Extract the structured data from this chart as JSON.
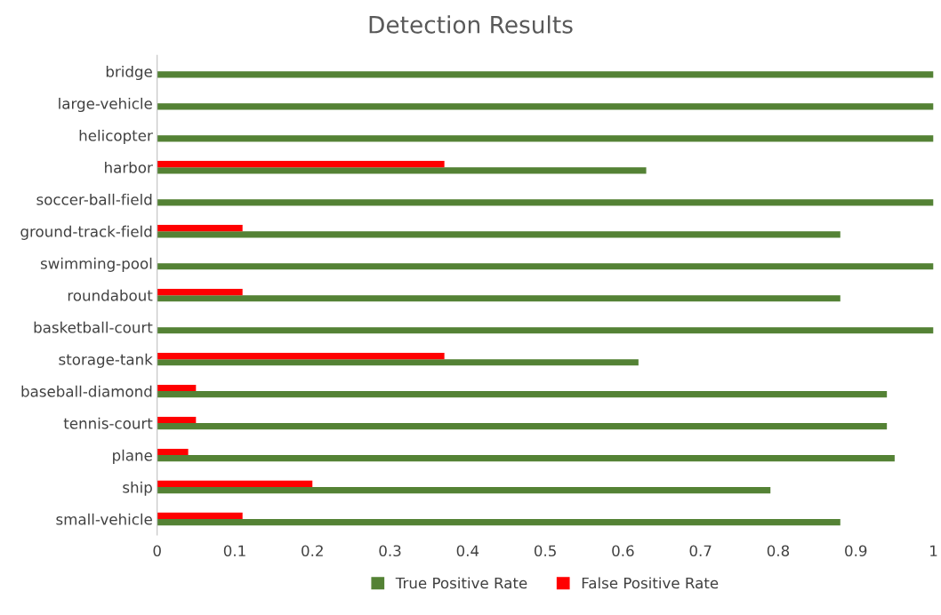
{
  "chart_data": {
    "type": "bar",
    "orientation": "horizontal",
    "title": "Detection Results",
    "categories": [
      "bridge",
      "large-vehicle",
      "helicopter",
      "harbor",
      "soccer-ball-field",
      "ground-track-field",
      "swimming-pool",
      "roundabout",
      "basketball-court",
      "storage-tank",
      "baseball-diamond",
      "tennis-court",
      "plane",
      "ship",
      "small-vehicle"
    ],
    "series": [
      {
        "name": "True Positive Rate",
        "color": "#548235",
        "values": [
          1,
          1,
          1,
          0.63,
          1,
          0.88,
          1,
          0.88,
          1,
          0.62,
          0.94,
          0.94,
          0.95,
          0.79,
          0.88
        ]
      },
      {
        "name": "False Positive Rate",
        "color": "#ff0000",
        "values": [
          0,
          0,
          0,
          0.37,
          0,
          0.11,
          0,
          0.11,
          0,
          0.37,
          0.05,
          0.05,
          0.04,
          0.2,
          0.11
        ]
      }
    ],
    "xlim": [
      0,
      1
    ],
    "xticks": [
      0,
      0.1,
      0.2,
      0.3,
      0.4,
      0.5,
      0.6,
      0.7,
      0.8,
      0.9,
      1
    ],
    "grid": false,
    "legend": "bottom"
  }
}
